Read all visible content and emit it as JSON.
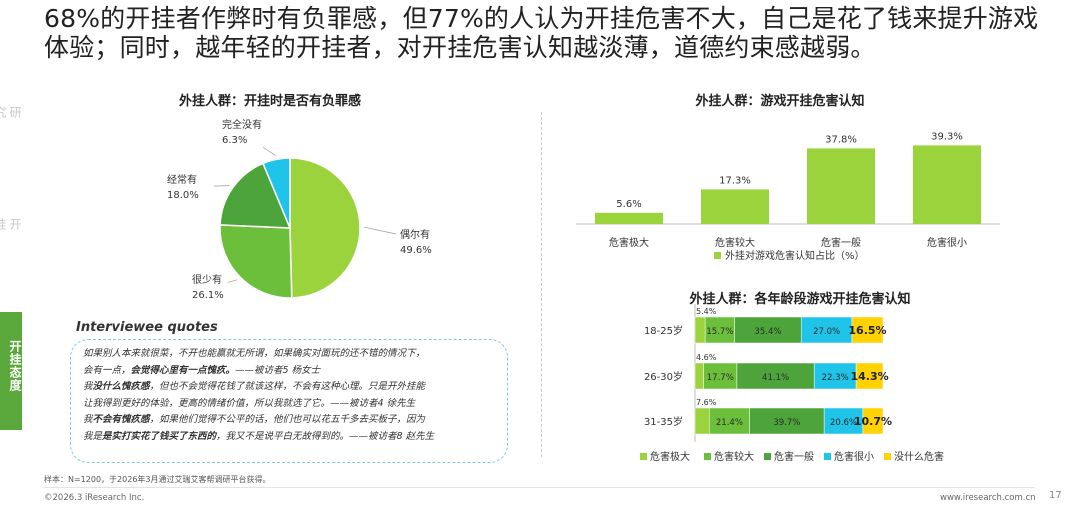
{
  "headline": "68%的开挂者作弊时有负罪感，但77%的人认为开挂危害不大，自己是花了钱来提升游戏体验；同时，越年轻的开挂者，对开挂危害认知越淡薄，道德约束感越弱。",
  "sidebar": {
    "items": [
      "研究设计",
      "开挂现状",
      "开挂态度"
    ],
    "active_index": 2
  },
  "colors": {
    "green_dark": "#4da43a",
    "green_mid": "#6cbf3b",
    "green_light": "#9bd33c",
    "cyan": "#20c4e8",
    "yellow": "#ffd200",
    "sidebar_active": "#5aa83c"
  },
  "chart_data": [
    {
      "type": "pie",
      "title": "外挂人群：开挂时是否有负罪感",
      "slices": [
        {
          "label": "偶尔有",
          "value": 49.6,
          "display": "49.6%"
        },
        {
          "label": "很少有",
          "value": 26.1,
          "display": "26.1%"
        },
        {
          "label": "经常有",
          "value": 18.0,
          "display": "18.0%"
        },
        {
          "label": "完全没有",
          "value": 6.3,
          "display": "6.3%"
        }
      ]
    },
    {
      "type": "bar",
      "title": "外挂人群：游戏开挂危害认知",
      "categories": [
        "危害极大",
        "危害较大",
        "危害一般",
        "危害很小"
      ],
      "values": [
        5.6,
        17.3,
        37.8,
        39.3
      ],
      "value_labels": [
        "5.6%",
        "17.3%",
        "37.8%",
        "39.3%"
      ],
      "legend": "外挂对游戏危害认知占比（%）",
      "legend_position": "bottom",
      "ylim": [
        0,
        45
      ]
    },
    {
      "type": "bar",
      "orientation": "horizontal-stacked",
      "title": "外挂人群：各年龄段游戏开挂危害认知",
      "categories": [
        "18-25岁",
        "26-30岁",
        "31-35岁"
      ],
      "series": [
        {
          "name": "危害极大",
          "values": [
            5.4,
            4.6,
            7.6
          ],
          "labels": [
            "5.4%",
            "4.6%",
            "7.6%"
          ]
        },
        {
          "name": "危害较大",
          "values": [
            15.7,
            17.7,
            21.4
          ],
          "labels": [
            "15.7%",
            "17.7%",
            "21.4%"
          ]
        },
        {
          "name": "危害一般",
          "values": [
            35.4,
            41.1,
            39.7
          ],
          "labels": [
            "35.4%",
            "41.1%",
            "39.7%"
          ]
        },
        {
          "name": "危害很小",
          "values": [
            27.0,
            22.3,
            20.6
          ],
          "labels": [
            "27.0%",
            "22.3%",
            "20.6%"
          ]
        },
        {
          "name": "没什么危害",
          "values": [
            16.5,
            14.3,
            10.7
          ],
          "labels": [
            "16.5%",
            "14.3%",
            "10.7%"
          ]
        }
      ],
      "legend_position": "bottom",
      "xlim": [
        0,
        100
      ]
    }
  ],
  "quotes": {
    "title": "Interviewee quotes",
    "lines": [
      {
        "pre": "如果别人本来就很菜，不开也能赢就无所谓，如果确实对面玩的还不错的情况下，",
        "bold": "",
        "post": ""
      },
      {
        "pre": "会有一点，",
        "bold": "会觉得心里有一点愧疚。",
        "post": "——被访者5 杨女士"
      },
      {
        "pre": "我",
        "bold": "没什么愧疚感",
        "post": "，但也不会觉得花钱了就该这样，不会有这种心理。只是开外挂能"
      },
      {
        "pre": "让我得到更好的体验，更高的情绪价值，所以我就选了它。",
        "bold": "",
        "post": "——被访者4 徐先生"
      },
      {
        "pre": "我",
        "bold": "不会有愧疚感",
        "post": "，如果他们觉得不公平的话，他们也可以花五千多去买板子，因为"
      },
      {
        "pre": "我是",
        "bold": "是实打实花了钱买了东西的",
        "post": "，我又不是说平白无故得到的。——被访者8 赵先生"
      }
    ]
  },
  "note": "样本：N=1200，于2026年3月通过艾瑞艾客帮调研平台获得。",
  "footer": {
    "copyright": "©2026.3 iResearch Inc.",
    "website": "www.iresearch.com.cn",
    "page": "17"
  }
}
